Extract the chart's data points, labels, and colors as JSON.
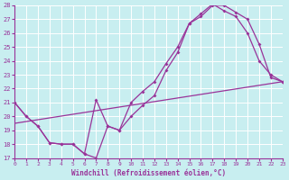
{
  "bg_color": "#c8eef0",
  "grid_color": "#ffffff",
  "line_color": "#993399",
  "xlabel": "Windchill (Refroidissement éolien,°C)",
  "xlim": [
    0,
    23
  ],
  "ylim": [
    17,
    28
  ],
  "xticks": [
    0,
    1,
    2,
    3,
    4,
    5,
    6,
    7,
    8,
    9,
    10,
    11,
    12,
    13,
    14,
    15,
    16,
    17,
    18,
    19,
    20,
    21,
    22,
    23
  ],
  "yticks": [
    17,
    18,
    19,
    20,
    21,
    22,
    23,
    24,
    25,
    26,
    27,
    28
  ],
  "line1_x": [
    0,
    1,
    2,
    3,
    4,
    5,
    6,
    7,
    8,
    9,
    10,
    11,
    12,
    13,
    14,
    15,
    16,
    17,
    18,
    19,
    20,
    21,
    22,
    23
  ],
  "line1_y": [
    21,
    20,
    19.3,
    18.1,
    18.0,
    18.0,
    17.3,
    17.0,
    19.3,
    19.0,
    20.0,
    20.8,
    21.5,
    23.3,
    24.6,
    26.7,
    27.2,
    28.0,
    28.0,
    27.5,
    27.0,
    25.2,
    22.8,
    22.5
  ],
  "line2_x": [
    0,
    1,
    2,
    3,
    4,
    5,
    6,
    7,
    8,
    9,
    10,
    11,
    12,
    13,
    14,
    15,
    16,
    17,
    18,
    19,
    20,
    21,
    22,
    23
  ],
  "line2_y": [
    21,
    20,
    19.3,
    18.1,
    18.0,
    18.0,
    17.3,
    21.2,
    19.3,
    19.0,
    21.0,
    21.8,
    22.5,
    23.8,
    25.0,
    26.7,
    27.4,
    28.1,
    27.6,
    27.2,
    26.0,
    24.0,
    23.0,
    22.5
  ],
  "line3_x": [
    0,
    23
  ],
  "line3_y": [
    19.5,
    22.5
  ]
}
